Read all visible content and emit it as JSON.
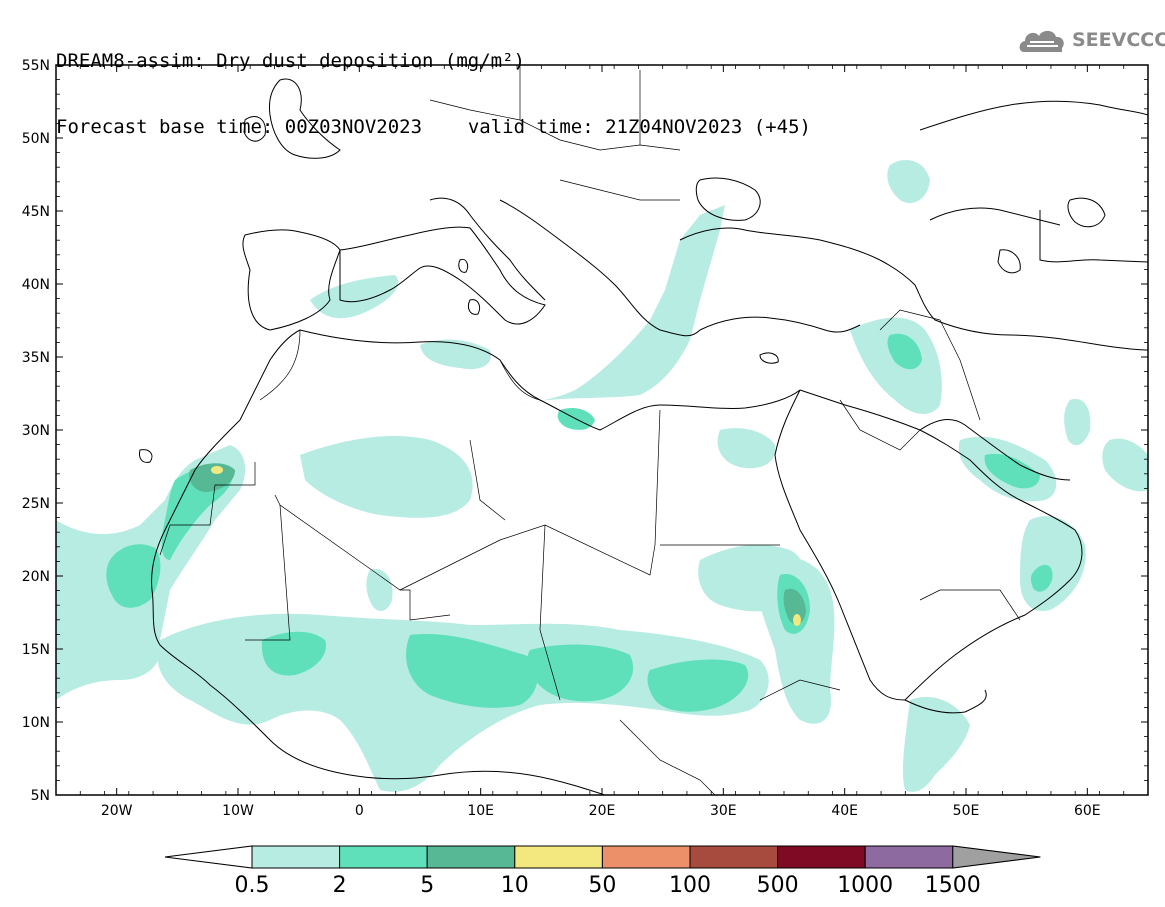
{
  "header": {
    "title_line1": "DREAM8-assim: Dry dust deposition (mg/m²)",
    "base_time": "Forecast base time: 00Z03NOV2023",
    "valid_time": "valid time: 21Z04NOV2023 (+45)"
  },
  "logo": {
    "text": "SEEVCCC",
    "icon": "cloud-icon"
  },
  "map": {
    "lon_range": [
      -25,
      65
    ],
    "lat_range": [
      5,
      55
    ],
    "lat_ticks": [
      "55N",
      "50N",
      "45N",
      "40N",
      "35N",
      "30N",
      "25N",
      "20N",
      "15N",
      "10N",
      "5N"
    ],
    "lon_ticks": [
      "20W",
      "10W",
      "0",
      "10E",
      "20E",
      "30E",
      "40E",
      "50E",
      "60E"
    ]
  },
  "colorbar": {
    "labels": [
      "0.5",
      "2",
      "5",
      "10",
      "50",
      "100",
      "500",
      "1000",
      "1500"
    ],
    "colors": [
      "#b7ece3",
      "#5fe0bb",
      "#56b894",
      "#f2e87f",
      "#eb9068",
      "#a84b3f",
      "#7e0a23",
      "#8d6a9f",
      "#a0a0a0"
    ]
  }
}
